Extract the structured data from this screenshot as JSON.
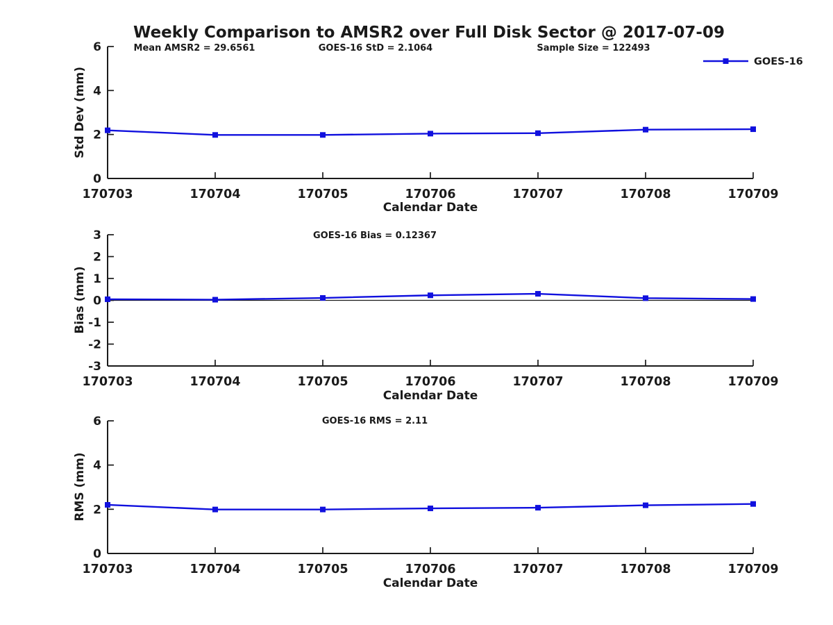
{
  "title": "Weekly Comparison to AMSR2 over Full Disk Sector @ 2017-07-09",
  "legend": {
    "label": "GOES-16"
  },
  "colors": {
    "line": "#1010DE",
    "axis": "#1a1a1a",
    "text": "#1a1a1a",
    "zero_line": "#1a1a1a"
  },
  "chart_data": [
    {
      "type": "line",
      "series_name": "GOES-16",
      "categories": [
        "170703",
        "170704",
        "170705",
        "170706",
        "170707",
        "170708",
        "170709"
      ],
      "values": [
        2.19,
        1.98,
        1.98,
        2.04,
        2.06,
        2.22,
        2.24
      ],
      "xlabel": "Calendar Date",
      "ylabel": "Std Dev (mm)",
      "ylim": [
        0,
        6
      ],
      "yticks": [
        0,
        2,
        4,
        6
      ],
      "zero_line": false,
      "grid": false,
      "marker": "square",
      "legend_position": "top-right",
      "annotations": [
        "Mean AMSR2 = 29.6561",
        "GOES-16 StD = 2.1064",
        "Sample Size = 122493"
      ]
    },
    {
      "type": "line",
      "series_name": "GOES-16",
      "categories": [
        "170703",
        "170704",
        "170705",
        "170706",
        "170707",
        "170708",
        "170709"
      ],
      "values": [
        0.05,
        0.03,
        0.11,
        0.23,
        0.3,
        0.1,
        0.06
      ],
      "xlabel": "Calendar Date",
      "ylabel": "Bias (mm)",
      "ylim": [
        -3,
        3
      ],
      "yticks": [
        -3,
        -2,
        -1,
        0,
        1,
        2,
        3
      ],
      "zero_line": true,
      "grid": false,
      "marker": "square",
      "annotations": [
        "GOES-16 Bias  = 0.12367"
      ]
    },
    {
      "type": "line",
      "series_name": "GOES-16",
      "categories": [
        "170703",
        "170704",
        "170705",
        "170706",
        "170707",
        "170708",
        "170709"
      ],
      "values": [
        2.2,
        1.99,
        1.99,
        2.04,
        2.07,
        2.18,
        2.24
      ],
      "xlabel": "Calendar Date",
      "ylabel": "RMS (mm)",
      "ylim": [
        0,
        6
      ],
      "yticks": [
        0,
        2,
        4,
        6
      ],
      "zero_line": false,
      "grid": false,
      "marker": "square",
      "annotations": [
        "GOES-16 RMS = 2.11"
      ]
    }
  ]
}
